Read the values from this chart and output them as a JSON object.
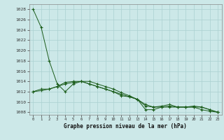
{
  "xlabel": "Graphe pression niveau de la mer (hPa)",
  "bg_color": "#cce8e8",
  "grid_color": "#aad0d0",
  "line_color": "#1a5c1a",
  "ylim": [
    1007.5,
    1029
  ],
  "xlim": [
    -0.5,
    23.5
  ],
  "yticks": [
    1008,
    1010,
    1012,
    1014,
    1016,
    1018,
    1020,
    1022,
    1024,
    1026,
    1028
  ],
  "xticks": [
    0,
    1,
    2,
    3,
    4,
    5,
    6,
    7,
    8,
    9,
    10,
    11,
    12,
    13,
    14,
    15,
    16,
    17,
    18,
    19,
    20,
    21,
    22,
    23
  ],
  "series1": [
    1028,
    1024.5,
    1018,
    1013.5,
    1012,
    1013.5,
    1014,
    1014,
    1013.5,
    1013,
    1012.5,
    1011.8,
    1011.2,
    1010.5,
    1009.2,
    1009,
    1009,
    1009.2,
    1009,
    1009,
    1009,
    1008.5,
    1008.2,
    1008
  ],
  "series2": [
    1012,
    1012.5,
    1012.5,
    1013,
    1013.5,
    1013.8,
    1014,
    1013.5,
    1013,
    1012.5,
    1012,
    1011.5,
    1011,
    1010.5,
    1009.5,
    1009,
    1009.2,
    1009.5,
    1009,
    1009,
    1009.2,
    1009,
    1008.5,
    1008
  ],
  "series3": [
    1012,
    1012.2,
    1012.5,
    1013,
    1013.8,
    1014,
    1014,
    1013.5,
    1013,
    1012.5,
    1012,
    1011.2,
    1011,
    1010.5,
    1008.5,
    1008.5,
    1009,
    1009,
    1009,
    1009,
    1009,
    1009,
    1008.5,
    1008
  ]
}
